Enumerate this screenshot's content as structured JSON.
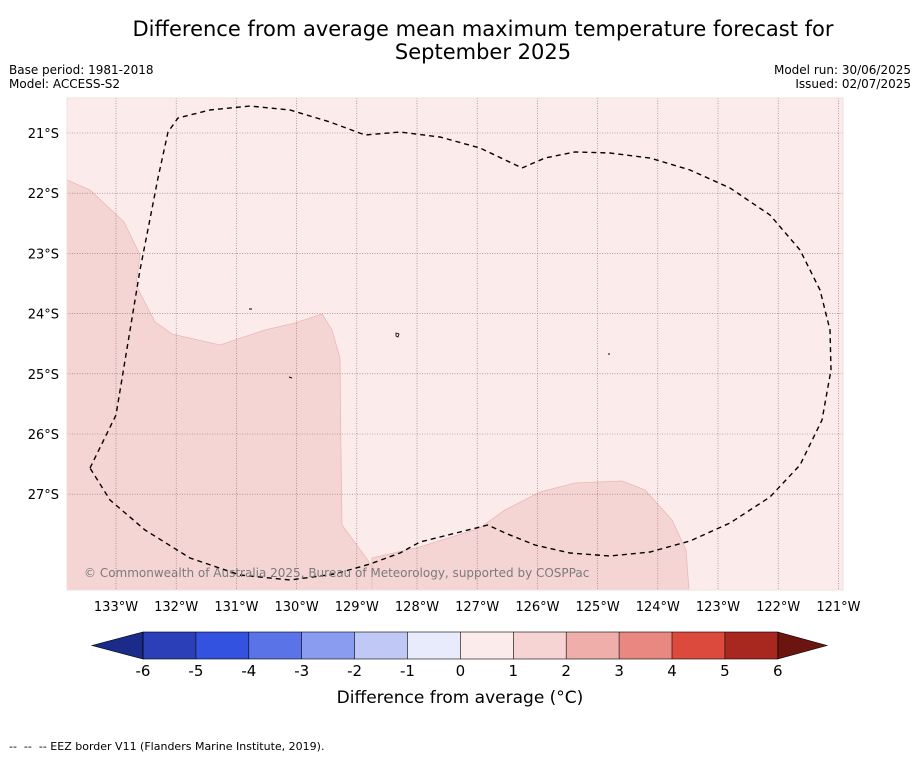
{
  "title_line1": "Difference from average mean maximum temperature forecast for",
  "title_line2": "September 2025",
  "base_period": "Base period: 1981-2018",
  "model": "Model: ACCESS-S2",
  "model_run": "Model run: 30/06/2025",
  "issued": "Issued: 02/07/2025",
  "copyright": "© Commonwealth of Australia 2025, Bureau of Meteorology, supported by COSPPac",
  "lat_labels": [
    "21°S",
    "22°S",
    "23°S",
    "24°S",
    "25°S",
    "26°S",
    "27°S"
  ],
  "lon_labels": [
    "133°W",
    "132°W",
    "131°W",
    "130°W",
    "129°W",
    "128°W",
    "127°W",
    "126°W",
    "125°W",
    "124°W",
    "123°W",
    "122°W",
    "121°W"
  ],
  "colorbar": {
    "tick_labels": [
      "-6",
      "-5",
      "-4",
      "-3",
      "-2",
      "-1",
      "0",
      "1",
      "2",
      "3",
      "4",
      "5",
      "6"
    ],
    "colors": [
      "#1a2b8a",
      "#2a3fb8",
      "#3352e0",
      "#5a74e8",
      "#8a9cf0",
      "#c0c8f6",
      "#e8ebfb",
      "#fbeceb",
      "#f5d4d3",
      "#efaea9",
      "#e88880",
      "#dc4a3e",
      "#a8271f",
      "#6b1410"
    ],
    "label": "Difference from average (°C)"
  },
  "map_fill_colors": {
    "band_0_1": "#fbeceb",
    "band_1_2": "#f5d5d4"
  },
  "footer": "--  --  -- EEZ border V11 (Flanders Marine Institute, 2019)."
}
